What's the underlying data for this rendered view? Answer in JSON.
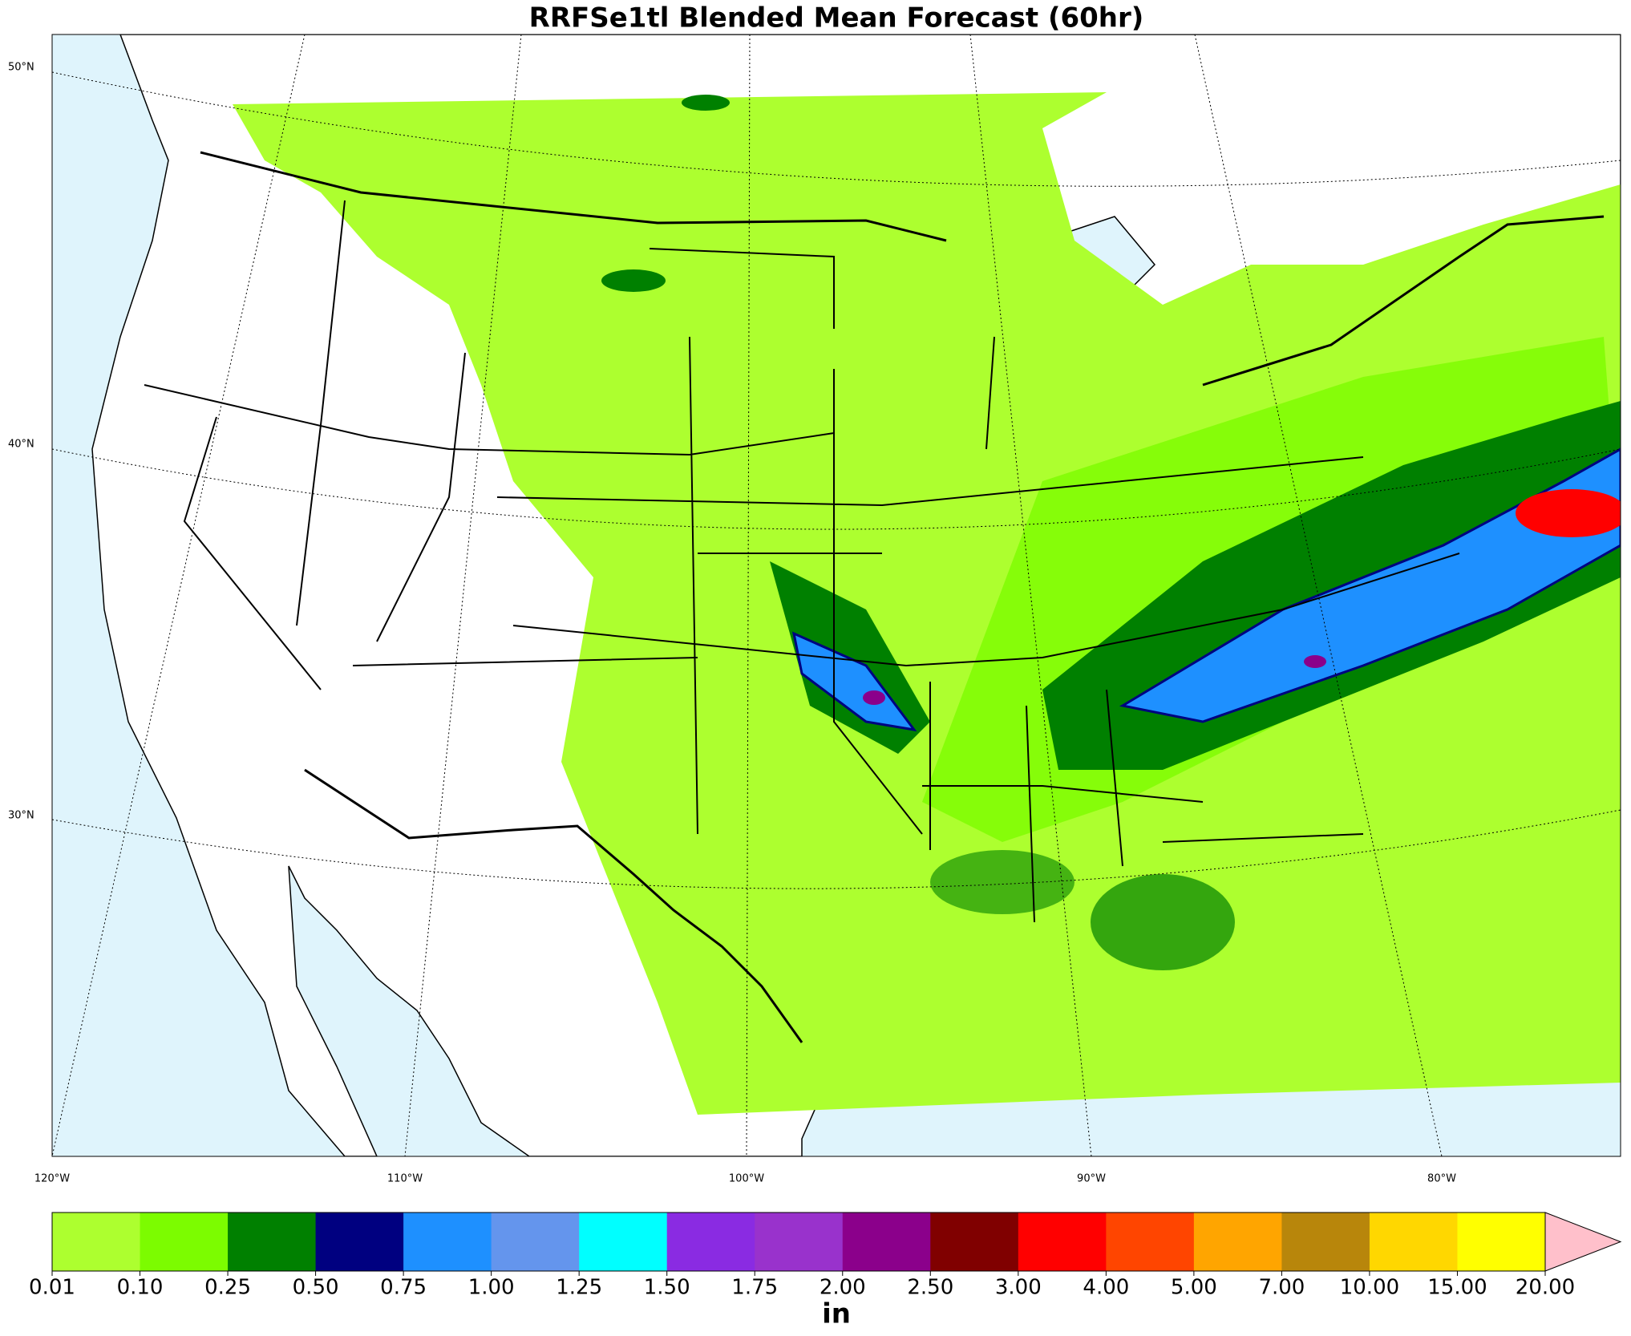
{
  "title": "RRFSe1tl Blended Mean Forecast (60hr)",
  "map": {
    "lat_labels": [
      "50°N",
      "40°N",
      "30°N"
    ],
    "lon_labels": [
      "120°W",
      "110°W",
      "100°W",
      "90°W",
      "80°W"
    ]
  },
  "colorbar": {
    "ticks": [
      "0.01",
      "0.10",
      "0.25",
      "0.50",
      "0.75",
      "1.00",
      "1.25",
      "1.50",
      "1.75",
      "2.00",
      "2.50",
      "3.00",
      "4.00",
      "5.00",
      "7.00",
      "10.00",
      "15.00",
      "20.00"
    ],
    "colors": [
      "#adff2f",
      "#7cfc00",
      "#008000",
      "#000080",
      "#1e90ff",
      "#6495ed",
      "#00ffff",
      "#8a2be2",
      "#9932cc",
      "#8b008b",
      "#800000",
      "#ff0000",
      "#ff4500",
      "#ffa500",
      "#b8860b",
      "#ffd700",
      "#ffff00"
    ],
    "extend_color": "#ffc0cb",
    "unit": "in"
  }
}
